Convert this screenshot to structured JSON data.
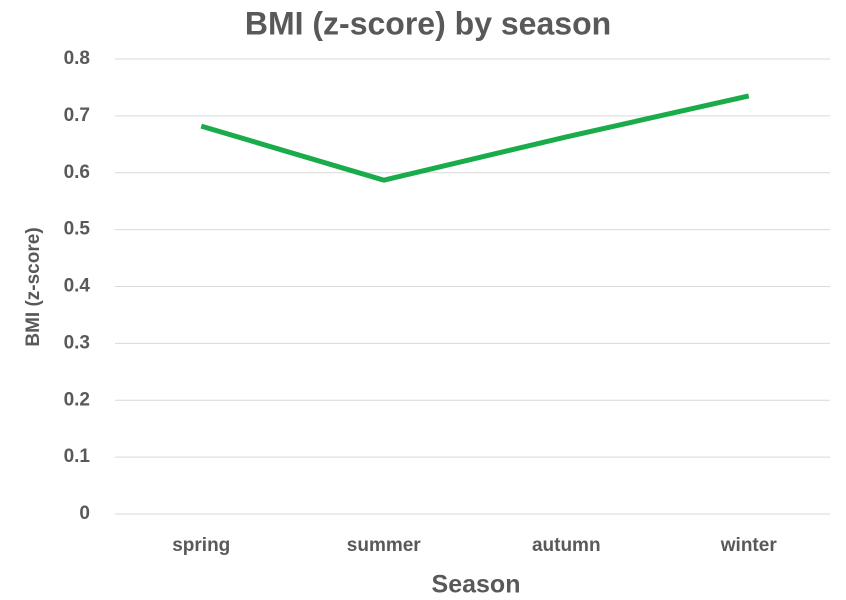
{
  "chart_data": {
    "type": "line",
    "title": "BMI (z-score) by season",
    "x_label": "Season",
    "y_label": "BMI (z-score)",
    "categories": [
      "spring",
      "summer",
      "autumn",
      "winter"
    ],
    "series": [
      {
        "name": "BMI (z-score)",
        "color": "#1aab4b",
        "values": [
          0.682,
          0.587,
          0.663,
          0.735
        ]
      }
    ],
    "ylim": [
      0,
      0.8
    ],
    "yticks": [
      0,
      0.1,
      0.2,
      0.3,
      0.4,
      0.5,
      0.6,
      0.7,
      0.8
    ],
    "grid": true
  }
}
